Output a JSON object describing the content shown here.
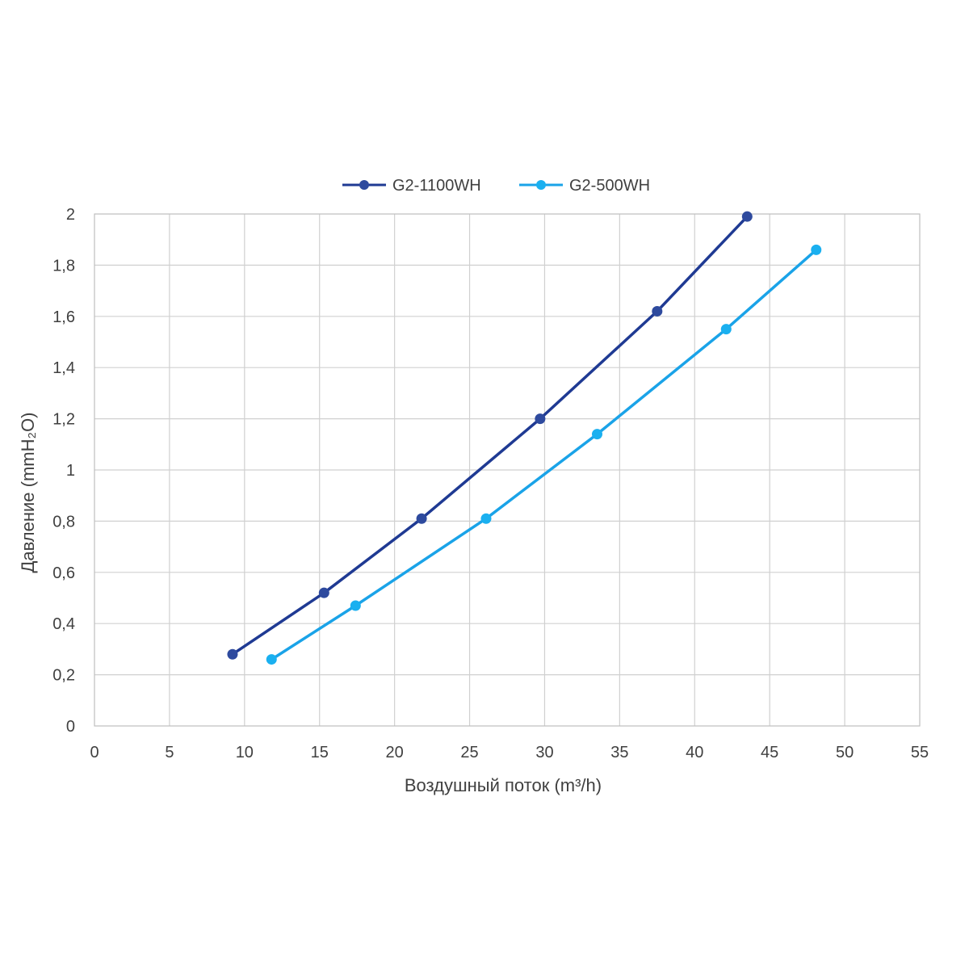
{
  "chart_data": {
    "type": "line",
    "xlabel": "Воздушный поток (m³/h)",
    "ylabel": "Давление (mmH₂O)",
    "xlim": [
      0,
      55
    ],
    "ylim": [
      0,
      2
    ],
    "xticks": [
      "0",
      "5",
      "10",
      "15",
      "20",
      "25",
      "30",
      "35",
      "40",
      "45",
      "50",
      "55"
    ],
    "yticks": [
      "0",
      "0,2",
      "0,4",
      "0,6",
      "0,8",
      "1",
      "1,2",
      "1,4",
      "1,6",
      "1,8",
      "2"
    ],
    "grid": true,
    "legend_position": "top",
    "series": [
      {
        "name": "G2-1100WH",
        "color": "#1f3a93",
        "marker_color": "#2e4a9e",
        "x": [
          9.2,
          15.3,
          21.8,
          29.7,
          37.5,
          43.5
        ],
        "y": [
          0.28,
          0.52,
          0.81,
          1.2,
          1.62,
          1.99
        ]
      },
      {
        "name": "G2-500WH",
        "color": "#1aa3e8",
        "marker_color": "#1ab0f0",
        "x": [
          11.8,
          17.4,
          26.1,
          33.5,
          42.1,
          48.1
        ],
        "y": [
          0.26,
          0.47,
          0.81,
          1.14,
          1.55,
          1.86
        ]
      }
    ]
  },
  "legend": {
    "series_1_label": "G2-1100WH",
    "series_2_label": "G2-500WH"
  }
}
